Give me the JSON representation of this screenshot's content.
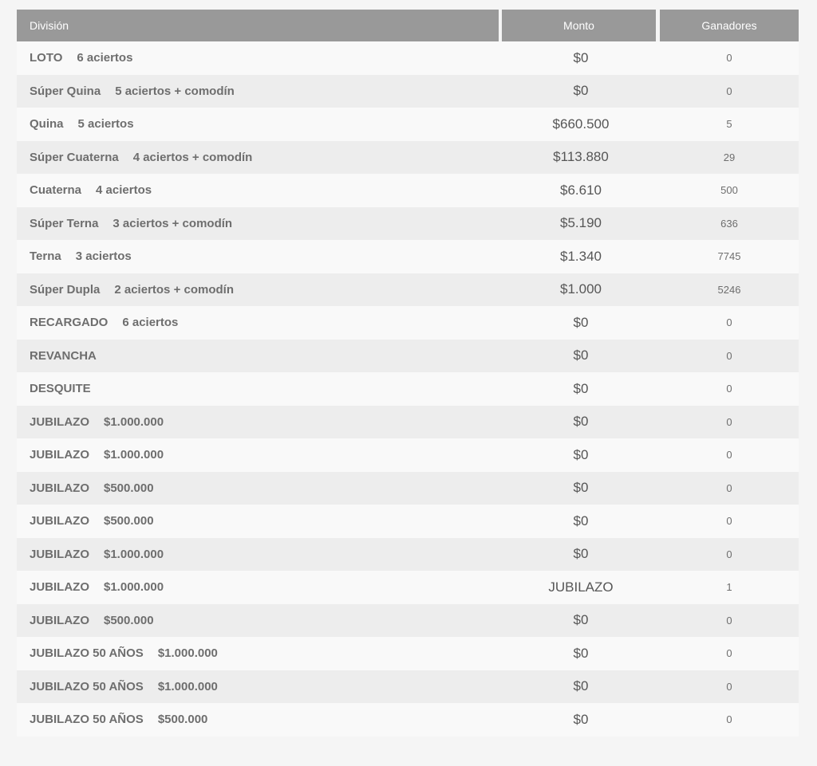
{
  "header": {
    "division_label": "División",
    "monto_label": "Monto",
    "ganadores_label": "Ganadores"
  },
  "rows": [
    {
      "division": "LOTO",
      "detail": "6 aciertos",
      "monto": "$0",
      "ganadores": "0"
    },
    {
      "division": "Súper Quina",
      "detail": "5 aciertos + comodín",
      "monto": "$0",
      "ganadores": "0"
    },
    {
      "division": "Quina",
      "detail": "5 aciertos",
      "monto": "$660.500",
      "ganadores": "5"
    },
    {
      "division": "Súper Cuaterna",
      "detail": "4 aciertos + comodín",
      "monto": "$113.880",
      "ganadores": "29"
    },
    {
      "division": "Cuaterna",
      "detail": "4 aciertos",
      "monto": "$6.610",
      "ganadores": "500"
    },
    {
      "division": "Súper Terna",
      "detail": "3 aciertos + comodín",
      "monto": "$5.190",
      "ganadores": "636"
    },
    {
      "division": "Terna",
      "detail": "3 aciertos",
      "monto": "$1.340",
      "ganadores": "7745"
    },
    {
      "division": "Súper Dupla",
      "detail": "2 aciertos + comodín",
      "monto": "$1.000",
      "ganadores": "5246"
    },
    {
      "division": "RECARGADO",
      "detail": "6 aciertos",
      "monto": "$0",
      "ganadores": "0"
    },
    {
      "division": "REVANCHA",
      "detail": "",
      "monto": "$0",
      "ganadores": "0"
    },
    {
      "division": "DESQUITE",
      "detail": "",
      "monto": "$0",
      "ganadores": "0"
    },
    {
      "division": "JUBILAZO",
      "detail": "$1.000.000",
      "monto": "$0",
      "ganadores": "0"
    },
    {
      "division": "JUBILAZO",
      "detail": "$1.000.000",
      "monto": "$0",
      "ganadores": "0"
    },
    {
      "division": "JUBILAZO",
      "detail": "$500.000",
      "monto": "$0",
      "ganadores": "0"
    },
    {
      "division": "JUBILAZO",
      "detail": "$500.000",
      "monto": "$0",
      "ganadores": "0"
    },
    {
      "division": "JUBILAZO",
      "detail": "$1.000.000",
      "monto": "$0",
      "ganadores": "0"
    },
    {
      "division": "JUBILAZO",
      "detail": "$1.000.000",
      "monto": "JUBILAZO",
      "ganadores": "1"
    },
    {
      "division": "JUBILAZO",
      "detail": "$500.000",
      "monto": "$0",
      "ganadores": "0"
    },
    {
      "division": "JUBILAZO 50 AÑOS",
      "detail": "$1.000.000",
      "monto": "$0",
      "ganadores": "0"
    },
    {
      "division": "JUBILAZO 50 AÑOS",
      "detail": "$1.000.000",
      "monto": "$0",
      "ganadores": "0"
    },
    {
      "division": "JUBILAZO 50 AÑOS",
      "detail": "$500.000",
      "monto": "$0",
      "ganadores": "0"
    }
  ],
  "colors": {
    "page_background": "#f5f5f5",
    "header_background": "#999999",
    "header_text": "#ffffff",
    "row_background": "#f9f9f9",
    "row_alt_background": "#ededed",
    "division_text": "#6e6e6e",
    "monto_text": "#565656",
    "ganadores_text": "#6e6e6e"
  }
}
